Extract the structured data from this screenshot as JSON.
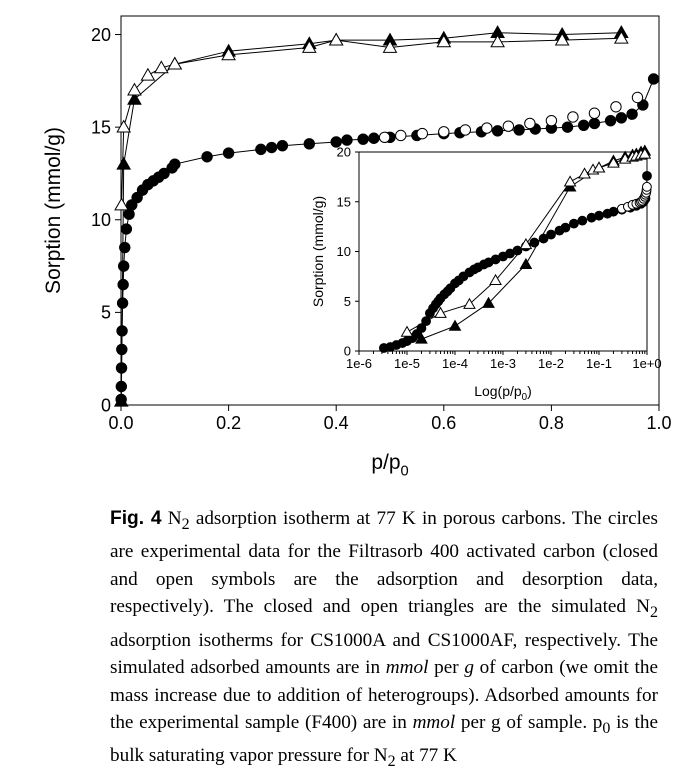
{
  "chart_data": [
    {
      "type": "scatter",
      "panel": "main",
      "xlabel": "p/p",
      "xlabel_sub": "0",
      "ylabel": "Sorption (mmol/g)",
      "xlim": [
        0,
        1.0
      ],
      "ylim": [
        0,
        21
      ],
      "xticks": [
        "0.0",
        "0.2",
        "0.4",
        "0.6",
        "0.8",
        "1.0"
      ],
      "yticks": [
        "0",
        "5",
        "10",
        "15",
        "20"
      ],
      "series": [
        {
          "marker": "circle-filled",
          "connected": true,
          "x": [
            0.0003,
            0.0006,
            0.001,
            0.0015,
            0.002,
            0.003,
            0.004,
            0.005,
            0.007,
            0.01,
            0.015,
            0.02,
            0.03,
            0.04,
            0.05,
            0.06,
            0.07,
            0.08,
            0.095,
            0.1,
            0.16,
            0.2,
            0.26,
            0.28,
            0.3,
            0.35,
            0.4,
            0.42,
            0.45,
            0.47,
            0.5,
            0.55,
            0.6,
            0.63,
            0.67,
            0.7,
            0.74,
            0.77,
            0.8,
            0.83,
            0.86,
            0.88,
            0.91,
            0.93,
            0.95,
            0.97,
            0.99
          ],
          "y": [
            0.3,
            1.0,
            2.0,
            3.0,
            4.0,
            5.5,
            6.5,
            7.5,
            8.5,
            9.5,
            10.3,
            10.8,
            11.2,
            11.6,
            11.9,
            12.1,
            12.3,
            12.5,
            12.8,
            13.0,
            13.4,
            13.6,
            13.8,
            13.9,
            14.0,
            14.1,
            14.2,
            14.3,
            14.35,
            14.4,
            14.45,
            14.55,
            14.65,
            14.7,
            14.75,
            14.8,
            14.85,
            14.9,
            14.95,
            15.0,
            15.1,
            15.2,
            15.35,
            15.5,
            15.7,
            16.2,
            17.6
          ]
        },
        {
          "marker": "circle-open",
          "connected": false,
          "x": [
            0.49,
            0.52,
            0.56,
            0.6,
            0.64,
            0.68,
            0.72,
            0.76,
            0.8,
            0.84,
            0.88,
            0.92,
            0.96
          ],
          "y": [
            14.45,
            14.55,
            14.65,
            14.75,
            14.85,
            14.95,
            15.05,
            15.2,
            15.35,
            15.55,
            15.75,
            16.1,
            16.6
          ]
        },
        {
          "marker": "triangle-filled",
          "connected": true,
          "x": [
            0.0005,
            0.005,
            0.025,
            0.1,
            0.2,
            0.35,
            0.4,
            0.5,
            0.6,
            0.7,
            0.82,
            0.93
          ],
          "y": [
            0.2,
            13.0,
            16.5,
            18.4,
            19.1,
            19.5,
            19.7,
            19.7,
            19.8,
            20.1,
            20.0,
            20.1
          ]
        },
        {
          "marker": "triangle-open",
          "connected": true,
          "x": [
            0.001,
            0.005,
            0.025,
            0.05,
            0.075,
            0.1,
            0.2,
            0.35,
            0.4,
            0.5,
            0.6,
            0.7,
            0.82,
            0.93
          ],
          "y": [
            10.8,
            15.0,
            17.0,
            17.8,
            18.2,
            18.4,
            18.9,
            19.3,
            19.7,
            19.3,
            19.6,
            19.6,
            19.7,
            19.8
          ]
        }
      ]
    },
    {
      "type": "scatter",
      "panel": "inset",
      "xscale": "log",
      "xlabel": "Log(p/p",
      "xlabel_sub": "0",
      "xlabel_end": ")",
      "ylabel": "Sorption (mmol/g)",
      "xlim": [
        1e-06,
        1
      ],
      "ylim": [
        0,
        20
      ],
      "xticks": [
        "1e-6",
        "1e-5",
        "1e-4",
        "1e-3",
        "1e-2",
        "1e-1",
        "1e+0"
      ],
      "yticks": [
        "0",
        "5",
        "10",
        "15",
        "20"
      ],
      "series": [
        {
          "marker": "circle-filled",
          "connected": true,
          "x": [
            3.3e-06,
            4.5e-06,
            6e-06,
            8e-06,
            1e-05,
            1.3e-05,
            1.6e-05,
            2e-05,
            2.5e-05,
            3e-05,
            3.5e-05,
            4e-05,
            4.5e-05,
            5e-05,
            6e-05,
            7e-05,
            8e-05,
            0.0001,
            0.00012,
            0.00015,
            0.0002,
            0.00025,
            0.0003,
            0.0004,
            0.0005,
            0.0007,
            0.001,
            0.0014,
            0.002,
            0.003,
            0.0045,
            0.007,
            0.01,
            0.015,
            0.02,
            0.03,
            0.045,
            0.07,
            0.1,
            0.15,
            0.2,
            0.3,
            0.45,
            0.6,
            0.75,
            0.85,
            0.93,
            0.97,
            1.0
          ],
          "y": [
            0.3,
            0.4,
            0.6,
            0.8,
            1.0,
            1.3,
            1.7,
            2.3,
            3.0,
            3.8,
            4.3,
            4.7,
            5.0,
            5.3,
            5.7,
            6.0,
            6.3,
            6.8,
            7.1,
            7.5,
            7.9,
            8.2,
            8.4,
            8.7,
            8.9,
            9.2,
            9.5,
            9.8,
            10.1,
            10.5,
            10.9,
            11.3,
            11.7,
            12.1,
            12.4,
            12.8,
            13.1,
            13.4,
            13.6,
            13.8,
            14.0,
            14.2,
            14.4,
            14.6,
            14.8,
            15.0,
            15.3,
            16.0,
            17.6
          ]
        },
        {
          "marker": "circle-open",
          "connected": false,
          "x": [
            0.3,
            0.4,
            0.5,
            0.6,
            0.7,
            0.75,
            0.8,
            0.85,
            0.9,
            0.93,
            0.96,
            0.98,
            0.995
          ],
          "y": [
            14.3,
            14.5,
            14.7,
            14.8,
            14.9,
            15.0,
            15.1,
            15.3,
            15.5,
            15.7,
            15.9,
            16.2,
            16.5
          ]
        },
        {
          "marker": "triangle-filled",
          "connected": true,
          "x": [
            2e-05,
            0.0001,
            0.0005,
            0.003,
            0.025,
            0.1,
            0.2,
            0.35,
            0.5,
            0.6,
            0.75,
            0.9
          ],
          "y": [
            1.2,
            2.5,
            4.8,
            8.7,
            16.5,
            18.4,
            19.1,
            19.5,
            19.7,
            19.8,
            20.0,
            20.1
          ]
        },
        {
          "marker": "triangle-open",
          "connected": true,
          "x": [
            1e-05,
            5e-05,
            0.0002,
            0.0007,
            0.003,
            0.025,
            0.05,
            0.075,
            0.1,
            0.2,
            0.35,
            0.5,
            0.6,
            0.75,
            0.9
          ],
          "y": [
            1.9,
            3.8,
            4.7,
            7.1,
            10.7,
            17.0,
            17.8,
            18.2,
            18.4,
            18.9,
            19.3,
            19.5,
            19.6,
            19.7,
            19.8
          ]
        }
      ]
    }
  ],
  "caption": {
    "label": "Fig. 4",
    "parts": [
      {
        "t": "  N"
      },
      {
        "t": "2",
        "sub": true
      },
      {
        "t": " adsorption isotherm at 77 K in porous carbons. The circles are experimental data for the Filtrasorb 400 activated carbon (closed and open symbols are the adsorption and desorption data, respectively). The closed and open triangles are the simulated N"
      },
      {
        "t": "2",
        "sub": true
      },
      {
        "t": " adsorption isotherms for CS1000A and CS1000AF, respectively. The simulated adsorbed amounts are in "
      },
      {
        "t": "mmol",
        "em": true
      },
      {
        "t": " per "
      },
      {
        "t": "g",
        "em": true
      },
      {
        "t": " of carbon (we omit the mass increase due to addition of heterogroups). Adsorbed amounts for the experimental sample (F400) are in "
      },
      {
        "t": "mmol",
        "em": true
      },
      {
        "t": " per g of sample. p"
      },
      {
        "t": "0",
        "sub": true
      },
      {
        "t": " is the bulk saturating vapor pressure for N"
      },
      {
        "t": "2",
        "sub": true
      },
      {
        "t": " at 77 K"
      }
    ]
  }
}
